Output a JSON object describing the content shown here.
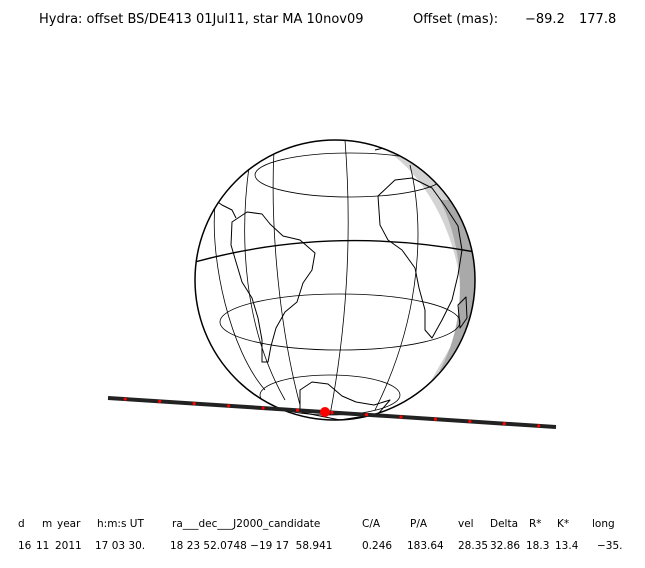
{
  "header": {
    "title": "Hydra: offset BS/DE413 01Jul11, star MA 10nov09",
    "offset_label": "Offset (mas):",
    "offset_x": "−89.2",
    "offset_y": "177.8"
  },
  "table": {
    "columns": [
      "d",
      "m",
      "year",
      "h:m:s UT",
      "ra___dec___J2000_candidate",
      "C/A",
      "P/A",
      "vel",
      "Delta",
      "R*",
      "K*",
      "long"
    ],
    "values": [
      "16",
      "11",
      "2011",
      "17 03 30.",
      "18 23 52.0748 −19 17  58.941",
      "0.246",
      "183.64",
      "28.35",
      "32.86",
      "18.3",
      "13.4",
      "−35."
    ]
  },
  "colors": {
    "track": "#222222",
    "track_marks": "#ff0000",
    "event_point": "#ff0000",
    "night_shade": "#d3d3d3",
    "twilight_shade": "#a9a9a9"
  }
}
